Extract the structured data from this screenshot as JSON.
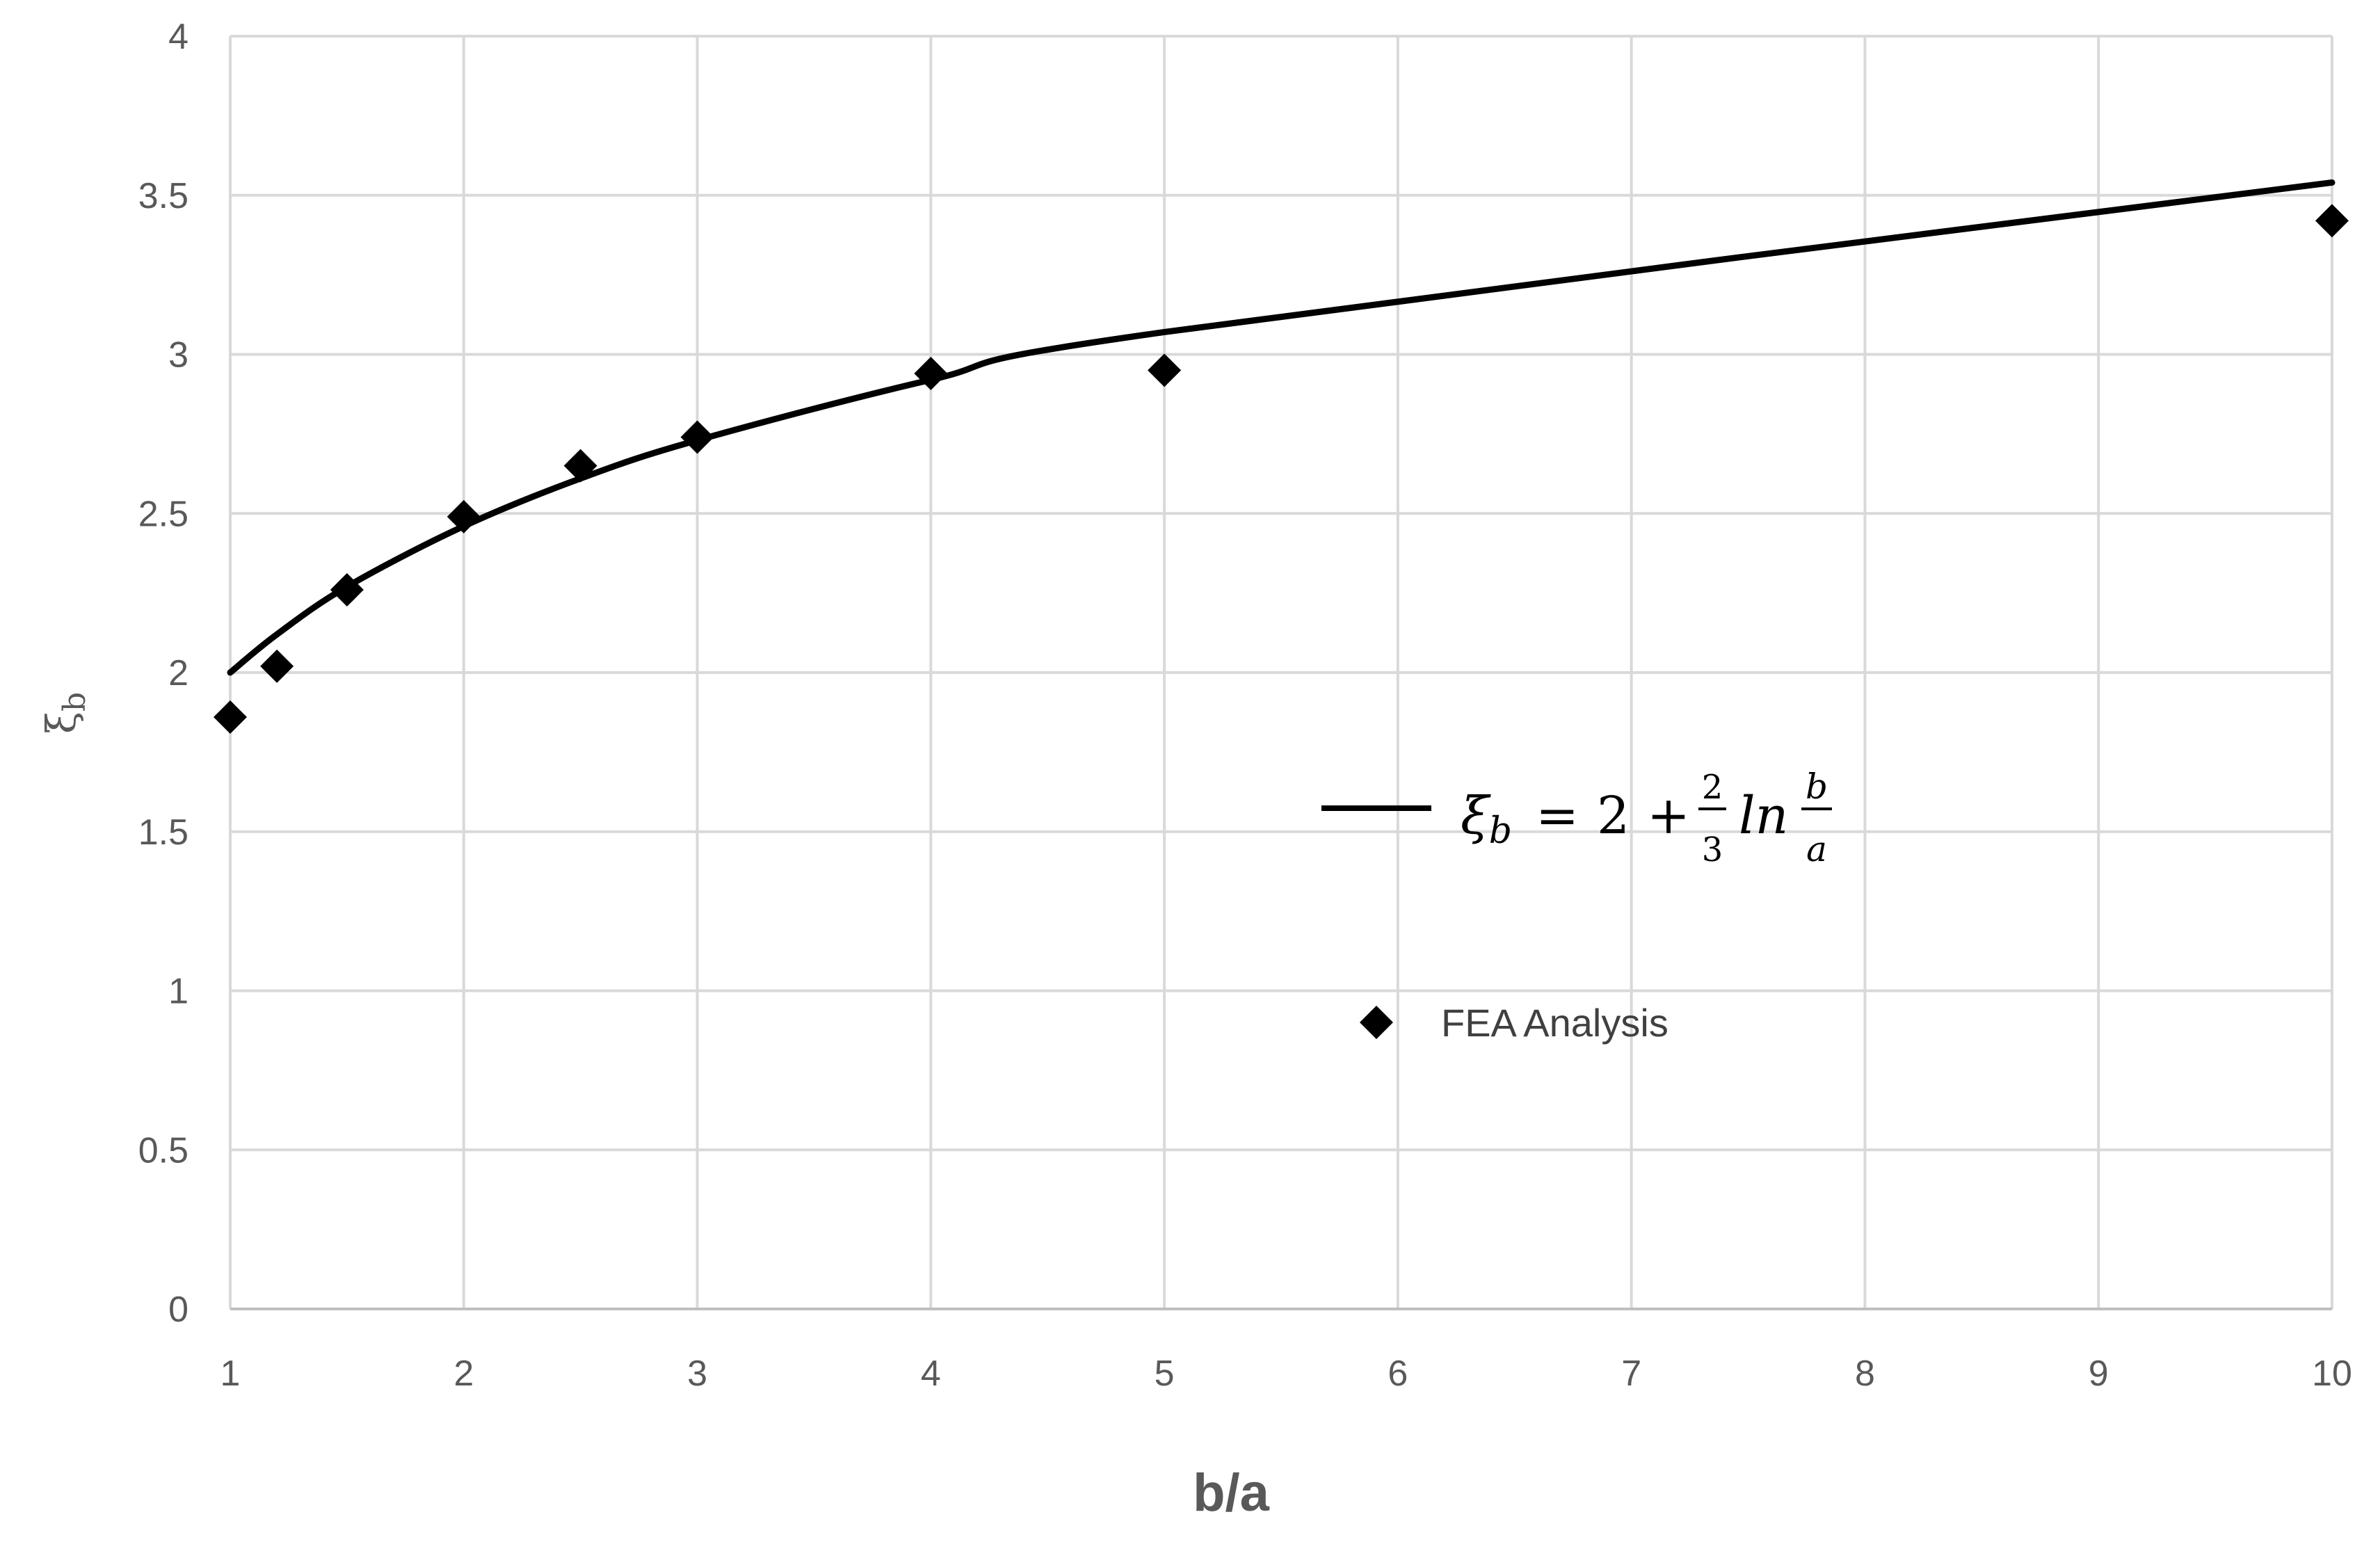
{
  "chart_data": {
    "type": "scatter",
    "title": "",
    "xlabel": "b/a",
    "ylabel": "ξb",
    "xlim": [
      1,
      10
    ],
    "ylim": [
      0,
      4
    ],
    "x_ticks": [
      "1",
      "2",
      "3",
      "4",
      "5",
      "6",
      "7",
      "8",
      "9",
      "10"
    ],
    "y_ticks": [
      "0",
      "0.5",
      "1",
      "1.5",
      "2",
      "2.5",
      "3",
      "3.5",
      "4"
    ],
    "grid": true,
    "legend_placement": "center-right",
    "series": [
      {
        "name": "ξb = 2 + (2/3) ln(b/a)",
        "kind": "line",
        "color": "#000000",
        "x": [
          1,
          1.2,
          1.5,
          2,
          2.5,
          3,
          4,
          5,
          10
        ],
        "y": [
          2.0,
          2.12,
          2.27,
          2.46,
          2.61,
          2.73,
          2.92,
          3.07,
          3.54
        ]
      },
      {
        "name": "FEA Analysis",
        "kind": "scatter",
        "marker": "diamond",
        "color": "#000000",
        "x": [
          1,
          1.2,
          1.5,
          2,
          2.5,
          3,
          4,
          5,
          10
        ],
        "y": [
          1.86,
          2.02,
          2.26,
          2.49,
          2.65,
          2.74,
          2.94,
          2.95,
          3.42
        ]
      }
    ],
    "legend": {
      "line_entry": {
        "lhs": "ξ",
        "lhs_sub": "b",
        "eq_sign": "=",
        "const": "2",
        "plus": "+",
        "frac_num": "2",
        "frac_den": "3",
        "fn": "ln",
        "ratio_num": "b",
        "ratio_den": "a"
      },
      "marker_entry": "FEA Analysis"
    }
  }
}
